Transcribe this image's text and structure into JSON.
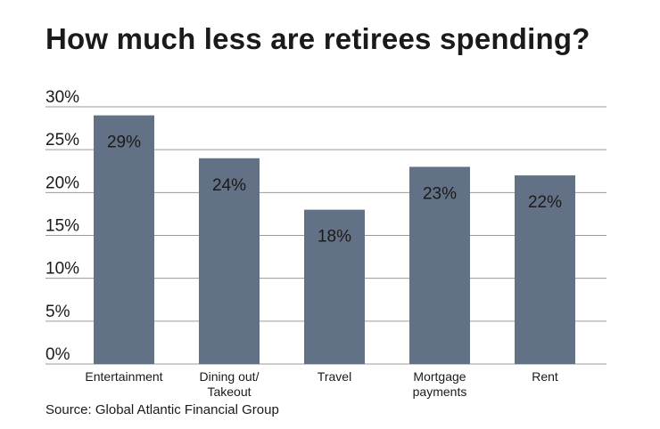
{
  "chart_data": {
    "type": "bar",
    "title": "How much less are retirees spending?",
    "categories": [
      [
        "Entertainment"
      ],
      [
        "Dining out/",
        "Takeout"
      ],
      [
        "Travel"
      ],
      [
        "Mortgage",
        "payments"
      ],
      [
        "Rent"
      ]
    ],
    "values": [
      29,
      24,
      18,
      23,
      22
    ],
    "data_labels": [
      "29%",
      "24%",
      "18%",
      "23%",
      "22%"
    ],
    "y_ticks": [
      "0%",
      "5%",
      "10%",
      "15%",
      "20%",
      "25%",
      "30%"
    ],
    "ylim": [
      0,
      30
    ],
    "xlabel": "",
    "ylabel": "",
    "grid": true,
    "colors": {
      "bar": "#627185",
      "grid": "#9a9a9a",
      "text": "#1a1a1a"
    },
    "source": "Source: Global Atlantic Financial Group"
  }
}
